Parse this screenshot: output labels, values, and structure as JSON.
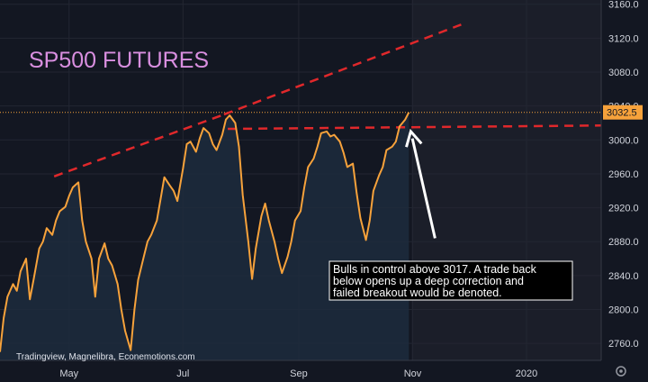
{
  "chart_data": {
    "type": "line",
    "title": "SP500 FUTURES",
    "source": "Tradingview, Magnelibra, Econemotions.com",
    "annotation": "Bulls in control above 3017. A trade back below opens up a deep correction and failed breakout would be denoted.",
    "last_value_label": "3032.5",
    "ylim": [
      2740,
      3165
    ],
    "y_ticks": [
      "3160.0",
      "3120.0",
      "3080.0",
      "3040.0",
      "3000.0",
      "2960.0",
      "2920.0",
      "2880.0",
      "2840.0",
      "2800.0",
      "2760.0"
    ],
    "x_ticks": [
      "May",
      "Jul",
      "Sep",
      "Nov",
      "2020"
    ],
    "x_tick_dates": [
      "2019-05-01",
      "2019-07-01",
      "2019-09-01",
      "2019-11-01",
      "2020-01-01"
    ],
    "xlim": [
      "2019-03-25",
      "2020-02-10"
    ],
    "series": [
      {
        "color": "#f7a23b",
        "dates": [
          "2019-03-25",
          "2019-03-27",
          "2019-03-29",
          "2019-04-01",
          "2019-04-03",
          "2019-04-05",
          "2019-04-08",
          "2019-04-10",
          "2019-04-12",
          "2019-04-15",
          "2019-04-17",
          "2019-04-19",
          "2019-04-22",
          "2019-04-24",
          "2019-04-26",
          "2019-04-29",
          "2019-05-01",
          "2019-05-03",
          "2019-05-06",
          "2019-05-08",
          "2019-05-10",
          "2019-05-13",
          "2019-05-15",
          "2019-05-17",
          "2019-05-20",
          "2019-05-22",
          "2019-05-24",
          "2019-05-27",
          "2019-05-29",
          "2019-05-31",
          "2019-06-03",
          "2019-06-05",
          "2019-06-07",
          "2019-06-10",
          "2019-06-12",
          "2019-06-14",
          "2019-06-17",
          "2019-06-19",
          "2019-06-21",
          "2019-06-24",
          "2019-06-26",
          "2019-06-28",
          "2019-07-01",
          "2019-07-03",
          "2019-07-05",
          "2019-07-08",
          "2019-07-10",
          "2019-07-12",
          "2019-07-15",
          "2019-07-17",
          "2019-07-19",
          "2019-07-22",
          "2019-07-24",
          "2019-07-26",
          "2019-07-29",
          "2019-07-31",
          "2019-08-02",
          "2019-08-05",
          "2019-08-07",
          "2019-08-09",
          "2019-08-12",
          "2019-08-14",
          "2019-08-16",
          "2019-08-19",
          "2019-08-21",
          "2019-08-23",
          "2019-08-26",
          "2019-08-28",
          "2019-08-30",
          "2019-09-02",
          "2019-09-04",
          "2019-09-06",
          "2019-09-09",
          "2019-09-11",
          "2019-09-13",
          "2019-09-16",
          "2019-09-18",
          "2019-09-20",
          "2019-09-23",
          "2019-09-25",
          "2019-09-27",
          "2019-09-30",
          "2019-10-02",
          "2019-10-04",
          "2019-10-07",
          "2019-10-09",
          "2019-10-11",
          "2019-10-14",
          "2019-10-16",
          "2019-10-18",
          "2019-10-21",
          "2019-10-23",
          "2019-10-25",
          "2019-10-28",
          "2019-10-30"
        ],
        "values": [
          2750,
          2790,
          2815,
          2830,
          2822,
          2845,
          2860,
          2812,
          2835,
          2872,
          2880,
          2896,
          2888,
          2905,
          2916,
          2921,
          2934,
          2944,
          2950,
          2905,
          2880,
          2860,
          2815,
          2860,
          2878,
          2860,
          2852,
          2830,
          2800,
          2775,
          2752,
          2800,
          2835,
          2862,
          2880,
          2888,
          2905,
          2930,
          2956,
          2946,
          2940,
          2928,
          2966,
          2995,
          2998,
          2986,
          3002,
          3014,
          3008,
          2995,
          2988,
          3006,
          3024,
          3029,
          3020,
          2992,
          2935,
          2880,
          2836,
          2872,
          2910,
          2925,
          2905,
          2880,
          2860,
          2843,
          2862,
          2880,
          2905,
          2916,
          2944,
          2968,
          2978,
          2992,
          3008,
          3010,
          3004,
          3006,
          2998,
          2985,
          2968,
          2972,
          2938,
          2908,
          2882,
          2905,
          2940,
          2958,
          2968,
          2988,
          2992,
          2998,
          3016,
          3024,
          3032.5
        ]
      }
    ],
    "trendlines": [
      {
        "from": [
          "2019-04-23",
          2957
        ],
        "to": [
          "2019-07-23",
          3030
        ],
        "color": "#e0282b"
      },
      {
        "from": [
          "2019-07-23",
          3030
        ],
        "to": [
          "2019-11-27",
          3136
        ],
        "color": "#e0282b"
      },
      {
        "from": [
          "2019-07-25",
          3013
        ],
        "to": [
          "2020-02-10",
          3017
        ],
        "color": "#e0282b"
      }
    ],
    "arrow": {
      "from": [
        "2019-11-13",
        2884
      ],
      "to": [
        "2019-10-31",
        3010
      ],
      "color": "#ffffff"
    },
    "current_price": 3032.5
  }
}
